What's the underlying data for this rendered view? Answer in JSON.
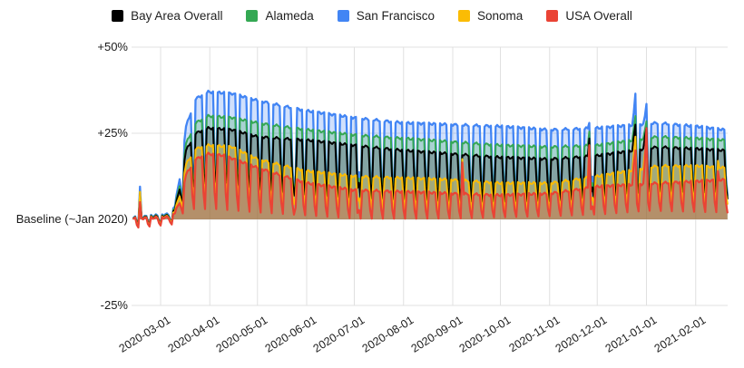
{
  "chart_data": {
    "type": "area",
    "title": "",
    "legend_position": "top-center",
    "grid": true,
    "x_start": "2020-02-13",
    "x_end": "2021-02-21",
    "x_ticks": [
      {
        "date": "2020-03-01",
        "label": "2020-03-01"
      },
      {
        "date": "2020-04-01",
        "label": "2020-04-01"
      },
      {
        "date": "2020-05-01",
        "label": "2020-05-01"
      },
      {
        "date": "2020-06-01",
        "label": "2020-06-01"
      },
      {
        "date": "2020-07-01",
        "label": "2020-07-01"
      },
      {
        "date": "2020-08-01",
        "label": "2020-08-01"
      },
      {
        "date": "2020-09-01",
        "label": "2020-09-01"
      },
      {
        "date": "2020-10-01",
        "label": "2020-10-01"
      },
      {
        "date": "2020-11-01",
        "label": "2020-11-01"
      },
      {
        "date": "2020-12-01",
        "label": "2020-12-01"
      },
      {
        "date": "2021-01-01",
        "label": "2021-01-01"
      },
      {
        "date": "2021-02-01",
        "label": "2021-02-01"
      }
    ],
    "y_axis": {
      "unit": "percent change vs baseline",
      "range": [
        -25,
        50
      ],
      "ticks": [
        {
          "value": 50,
          "label": "+50%"
        },
        {
          "value": 25,
          "label": "+25%"
        },
        {
          "value": 0,
          "label": "Baseline (~Jan 2020)"
        },
        {
          "value": -25,
          "label": "-25%"
        }
      ]
    },
    "weekly_pattern": "weekday plateau with weekend dips; Saturday partial dip, Sunday lowest",
    "weekend_like_holidays": [
      "2020-05-25",
      "2020-07-03",
      "2020-11-27"
    ],
    "draw_order": [
      "San Francisco",
      "Alameda",
      "Bay Area Overall",
      "Sonoma",
      "USA Overall"
    ],
    "fill_opacity": 0.25,
    "gridline_color": "#e0e0e0",
    "series": [
      {
        "name": "Bay Area Overall",
        "color": "#000000",
        "fill_opacity": 0.22,
        "weekday_trend": [
          [
            "2020-02-13",
            0.3
          ],
          [
            "2020-03-06",
            1
          ],
          [
            "2020-03-10",
            3
          ],
          [
            "2020-03-13",
            9
          ],
          [
            "2020-03-17",
            20
          ],
          [
            "2020-03-23",
            25
          ],
          [
            "2020-03-31",
            26.5
          ],
          [
            "2020-04-15",
            26
          ],
          [
            "2020-05-01",
            24
          ],
          [
            "2020-06-01",
            23
          ],
          [
            "2020-07-01",
            21.5
          ],
          [
            "2020-08-01",
            20
          ],
          [
            "2020-09-01",
            19
          ],
          [
            "2020-10-01",
            18
          ],
          [
            "2020-11-01",
            17.5
          ],
          [
            "2020-12-01",
            18.5
          ],
          [
            "2021-01-08",
            21
          ],
          [
            "2021-02-01",
            20.5
          ],
          [
            "2021-02-19",
            20
          ]
        ],
        "weekend_dip": [
          [
            "2020-02-13",
            -1.5
          ],
          [
            "2020-03-08",
            -1
          ],
          [
            "2020-03-14",
            4
          ],
          [
            "2020-03-21",
            7
          ],
          [
            "2020-04-04",
            9
          ],
          [
            "2020-05-02",
            7.5
          ],
          [
            "2020-06-06",
            6.5
          ],
          [
            "2020-07-04",
            6
          ],
          [
            "2020-08-01",
            5.5
          ],
          [
            "2020-09-05",
            5
          ],
          [
            "2020-11-07",
            5
          ],
          [
            "2020-12-05",
            5.5
          ],
          [
            "2021-01-02",
            6.5
          ],
          [
            "2021-02-21",
            6
          ]
        ],
        "events": {
          "2020-02-17": 7.5,
          "2020-11-26": 23.5,
          "2020-12-24": 24,
          "2020-12-25": 27.5,
          "2020-12-31": 24,
          "2021-01-01": 26.5
        }
      },
      {
        "name": "Alameda",
        "color": "#34a853",
        "fill_opacity": 0.25,
        "weekday_trend": [
          [
            "2020-02-13",
            0.4
          ],
          [
            "2020-03-06",
            1.2
          ],
          [
            "2020-03-10",
            3.5
          ],
          [
            "2020-03-13",
            10
          ],
          [
            "2020-03-17",
            22
          ],
          [
            "2020-03-23",
            28
          ],
          [
            "2020-03-31",
            30
          ],
          [
            "2020-04-15",
            29.5
          ],
          [
            "2020-05-01",
            28
          ],
          [
            "2020-06-01",
            26
          ],
          [
            "2020-07-01",
            24.5
          ],
          [
            "2020-08-01",
            23.5
          ],
          [
            "2020-09-01",
            22.5
          ],
          [
            "2020-10-01",
            21.5
          ],
          [
            "2020-11-01",
            21
          ],
          [
            "2020-12-01",
            21.5
          ],
          [
            "2021-01-08",
            24
          ],
          [
            "2021-02-01",
            23.5
          ],
          [
            "2021-02-19",
            23
          ]
        ],
        "weekend_dip": [
          [
            "2020-02-13",
            -1.5
          ],
          [
            "2020-03-08",
            -1
          ],
          [
            "2020-03-14",
            4.5
          ],
          [
            "2020-03-21",
            7.5
          ],
          [
            "2020-04-04",
            10
          ],
          [
            "2020-05-02",
            8.5
          ],
          [
            "2020-06-06",
            7
          ],
          [
            "2020-07-04",
            6.5
          ],
          [
            "2020-08-01",
            6
          ],
          [
            "2020-09-05",
            5.5
          ],
          [
            "2020-11-07",
            5.5
          ],
          [
            "2020-12-05",
            6
          ],
          [
            "2021-01-02",
            7
          ],
          [
            "2021-02-21",
            6.5
          ]
        ],
        "events": {
          "2020-02-17": 8,
          "2020-11-26": 25.5,
          "2020-12-24": 26.5,
          "2020-12-25": 30,
          "2020-12-31": 26,
          "2021-01-01": 28.5
        }
      },
      {
        "name": "San Francisco",
        "color": "#4285f4",
        "fill_opacity": 0.25,
        "weekday_trend": [
          [
            "2020-02-13",
            0.5
          ],
          [
            "2020-03-06",
            1.5
          ],
          [
            "2020-03-10",
            4
          ],
          [
            "2020-03-13",
            12
          ],
          [
            "2020-03-17",
            27
          ],
          [
            "2020-03-23",
            35
          ],
          [
            "2020-03-31",
            37
          ],
          [
            "2020-04-15",
            36.5
          ],
          [
            "2020-05-01",
            34.5
          ],
          [
            "2020-06-01",
            31.5
          ],
          [
            "2020-07-01",
            29.5
          ],
          [
            "2020-08-01",
            28
          ],
          [
            "2020-09-01",
            27.5
          ],
          [
            "2020-10-01",
            27
          ],
          [
            "2020-11-01",
            26
          ],
          [
            "2020-12-01",
            26.5
          ],
          [
            "2021-01-08",
            28
          ],
          [
            "2021-02-01",
            27
          ],
          [
            "2021-02-19",
            26
          ]
        ],
        "weekend_dip": [
          [
            "2020-02-13",
            -1.5
          ],
          [
            "2020-03-08",
            -1
          ],
          [
            "2020-03-14",
            5
          ],
          [
            "2020-03-21",
            8
          ],
          [
            "2020-04-04",
            11
          ],
          [
            "2020-05-02",
            9
          ],
          [
            "2020-06-06",
            7.5
          ],
          [
            "2020-07-04",
            7
          ],
          [
            "2020-08-01",
            6.5
          ],
          [
            "2020-09-05",
            6
          ],
          [
            "2020-11-07",
            6
          ],
          [
            "2020-12-05",
            6.5
          ],
          [
            "2021-01-02",
            7.5
          ],
          [
            "2021-02-21",
            7
          ]
        ],
        "events": {
          "2020-02-17": 9.5,
          "2020-11-26": 28,
          "2020-12-24": 31,
          "2020-12-25": 36.5,
          "2020-12-31": 30,
          "2021-01-01": 33.5
        }
      },
      {
        "name": "Sonoma",
        "color": "#fbbc04",
        "fill_opacity": 0.25,
        "weekday_trend": [
          [
            "2020-02-13",
            0.2
          ],
          [
            "2020-03-06",
            0.8
          ],
          [
            "2020-03-10",
            2.5
          ],
          [
            "2020-03-13",
            7
          ],
          [
            "2020-03-17",
            16
          ],
          [
            "2020-03-23",
            20.5
          ],
          [
            "2020-03-31",
            21.5
          ],
          [
            "2020-04-15",
            21
          ],
          [
            "2020-05-01",
            17.5
          ],
          [
            "2020-06-01",
            14
          ],
          [
            "2020-07-01",
            12.5
          ],
          [
            "2020-08-01",
            12
          ],
          [
            "2020-09-01",
            11.5
          ],
          [
            "2020-10-01",
            10.5
          ],
          [
            "2020-11-01",
            10.5
          ],
          [
            "2020-12-01",
            12.5
          ],
          [
            "2021-01-08",
            15.5
          ],
          [
            "2021-02-01",
            15.5
          ],
          [
            "2021-02-19",
            15
          ]
        ],
        "weekend_dip": [
          [
            "2020-02-13",
            -2
          ],
          [
            "2020-03-08",
            -1
          ],
          [
            "2020-03-14",
            3
          ],
          [
            "2020-03-21",
            5.5
          ],
          [
            "2020-04-04",
            6.5
          ],
          [
            "2020-05-02",
            5
          ],
          [
            "2020-06-06",
            4
          ],
          [
            "2020-07-04",
            3.5
          ],
          [
            "2020-08-01",
            3
          ],
          [
            "2020-09-05",
            2.5
          ],
          [
            "2020-11-07",
            3
          ],
          [
            "2020-12-05",
            4
          ],
          [
            "2021-01-02",
            5
          ],
          [
            "2021-02-21",
            4.5
          ]
        ],
        "events": {
          "2020-02-17": 8,
          "2020-09-07": 17.5,
          "2020-11-26": 21.5,
          "2020-12-24": 19,
          "2020-12-25": 24,
          "2020-12-31": 19.5,
          "2021-01-01": 22,
          "2021-02-15": 17
        }
      },
      {
        "name": "USA Overall",
        "color": "#ea4335",
        "fill_opacity": 0.25,
        "weekday_trend": [
          [
            "2020-02-13",
            0.2
          ],
          [
            "2020-03-06",
            0.6
          ],
          [
            "2020-03-10",
            2
          ],
          [
            "2020-03-13",
            5
          ],
          [
            "2020-03-17",
            13
          ],
          [
            "2020-03-23",
            17.5
          ],
          [
            "2020-03-31",
            19
          ],
          [
            "2020-04-10",
            18.5
          ],
          [
            "2020-05-01",
            15
          ],
          [
            "2020-06-01",
            10.5
          ],
          [
            "2020-07-01",
            8.5
          ],
          [
            "2020-08-01",
            8
          ],
          [
            "2020-09-01",
            7.5
          ],
          [
            "2020-10-01",
            7
          ],
          [
            "2020-11-01",
            7.5
          ],
          [
            "2020-12-01",
            9.5
          ],
          [
            "2021-01-08",
            10.5
          ],
          [
            "2021-02-01",
            11
          ],
          [
            "2021-02-19",
            11.5
          ]
        ],
        "weekend_dip": [
          [
            "2020-02-13",
            -2.5
          ],
          [
            "2020-03-08",
            -1.5
          ],
          [
            "2020-03-14",
            1.5
          ],
          [
            "2020-03-21",
            3
          ],
          [
            "2020-04-04",
            3
          ],
          [
            "2020-05-02",
            2
          ],
          [
            "2020-06-06",
            1
          ],
          [
            "2020-07-04",
            0.2
          ],
          [
            "2020-08-01",
            0.2
          ],
          [
            "2020-09-05",
            0.3
          ],
          [
            "2020-11-07",
            1
          ],
          [
            "2020-12-05",
            1.5
          ],
          [
            "2021-01-02",
            2.5
          ],
          [
            "2021-02-21",
            2
          ]
        ],
        "events": {
          "2020-02-17": 5,
          "2020-09-07": 16.5,
          "2020-11-26": 21.5,
          "2020-12-24": 16,
          "2020-12-25": 20,
          "2020-12-31": 17,
          "2021-01-01": 26.5,
          "2021-02-15": 14
        }
      }
    ]
  }
}
